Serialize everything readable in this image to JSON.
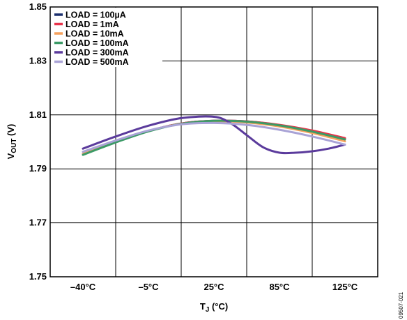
{
  "chart_data": {
    "type": "line",
    "xlabel": {
      "main": "T",
      "sub": "J",
      "rest": " (°C)"
    },
    "ylabel": {
      "main": "V",
      "sub": "OUT",
      "rest": " (V)"
    },
    "categories": [
      "–40°C",
      "–5°C",
      "25°C",
      "85°C",
      "125°C"
    ],
    "yticks": [
      "1.75",
      "1.77",
      "1.79",
      "1.81",
      "1.83",
      "1.85"
    ],
    "ylim": [
      1.75,
      1.85
    ],
    "grid": true,
    "legend_position": "top-left",
    "x_positions_units": "category index (0 = –40°C … 4 = 125°C)",
    "series": [
      {
        "name": "LOAD = 100µA",
        "color": "#1a2f6e",
        "x": [
          0,
          0.5,
          1,
          1.5,
          2,
          2.5,
          3,
          3.5,
          4
        ],
        "values": [
          1.7955,
          1.8,
          1.804,
          1.8068,
          1.8078,
          1.8076,
          1.8062,
          1.804,
          1.8012
        ]
      },
      {
        "name": "LOAD = 1mA",
        "color": "#e8334a",
        "x": [
          0,
          0.5,
          1,
          1.5,
          2,
          2.5,
          3,
          3.5,
          4
        ],
        "values": [
          1.7955,
          1.8,
          1.804,
          1.8068,
          1.8078,
          1.8076,
          1.8063,
          1.8042,
          1.8014
        ]
      },
      {
        "name": "LOAD = 10mA",
        "color": "#f5a15c",
        "x": [
          0,
          0.5,
          1,
          1.5,
          2,
          2.5,
          3,
          3.5,
          4
        ],
        "values": [
          1.7955,
          1.8,
          1.804,
          1.8067,
          1.8076,
          1.8072,
          1.8057,
          1.8033,
          1.8002
        ]
      },
      {
        "name": "LOAD = 100mA",
        "color": "#3c9a66",
        "x": [
          0,
          0.5,
          1,
          1.5,
          2,
          2.5,
          3,
          3.5,
          4
        ],
        "values": [
          1.7952,
          1.7998,
          1.8039,
          1.8067,
          1.8078,
          1.8075,
          1.8061,
          1.8038,
          1.8009
        ]
      },
      {
        "name": "LOAD = 300mA",
        "color": "#5b3b9c",
        "x": [
          0,
          0.5,
          1,
          1.5,
          2,
          2.25,
          2.5,
          2.75,
          3,
          3.25,
          3.5,
          3.75,
          4
        ],
        "values": [
          1.7975,
          1.802,
          1.806,
          1.8088,
          1.8093,
          1.807,
          1.8025,
          1.798,
          1.796,
          1.796,
          1.7965,
          1.7975,
          1.799
        ]
      },
      {
        "name": "LOAD = 500mA",
        "color": "#a9a3d6",
        "x": [
          0,
          0.5,
          1,
          1.5,
          2,
          2.5,
          3,
          3.5,
          4
        ],
        "values": [
          1.7963,
          1.8005,
          1.8042,
          1.8065,
          1.807,
          1.8063,
          1.8045,
          1.802,
          1.799
        ]
      }
    ]
  },
  "figure_id": "09507-021"
}
